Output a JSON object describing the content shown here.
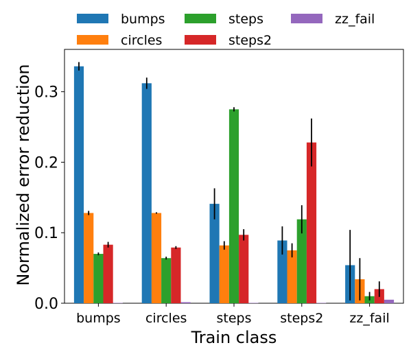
{
  "chart_data": {
    "type": "bar",
    "title": "",
    "xlabel": "Train class",
    "ylabel": "Normalized error reduction",
    "ylim": [
      0,
      0.36
    ],
    "yticks": [
      0.0,
      0.1,
      0.2,
      0.3
    ],
    "ytick_labels": [
      "0.0",
      "0.1",
      "0.2",
      "0.3"
    ],
    "grid": false,
    "legend_position": "top",
    "categories": [
      "bumps",
      "circles",
      "steps",
      "steps2",
      "zz_fail"
    ],
    "series": [
      {
        "name": "bumps",
        "color": "#1f77b4",
        "values": [
          0.336,
          0.312,
          0.141,
          0.089,
          0.054
        ],
        "errors": [
          0.006,
          0.008,
          0.022,
          0.02,
          0.05
        ]
      },
      {
        "name": "circles",
        "color": "#ff7f0e",
        "values": [
          0.128,
          0.128,
          0.082,
          0.075,
          0.034
        ],
        "errors": [
          0.003,
          0.001,
          0.006,
          0.01,
          0.03
        ]
      },
      {
        "name": "steps",
        "color": "#2ca02c",
        "values": [
          0.07,
          0.064,
          0.275,
          0.119,
          0.01
        ],
        "errors": [
          0.002,
          0.002,
          0.003,
          0.02,
          0.006
        ]
      },
      {
        "name": "steps2",
        "color": "#d62728",
        "values": [
          0.083,
          0.079,
          0.097,
          0.228,
          0.02
        ],
        "errors": [
          0.004,
          0.002,
          0.008,
          0.034,
          0.011
        ]
      },
      {
        "name": "zz_fail",
        "color": "#9467bd",
        "values": [
          0.0005,
          0.0015,
          0.0005,
          0.0005,
          0.005
        ],
        "errors": [
          0,
          0,
          0,
          0,
          0
        ]
      }
    ]
  }
}
